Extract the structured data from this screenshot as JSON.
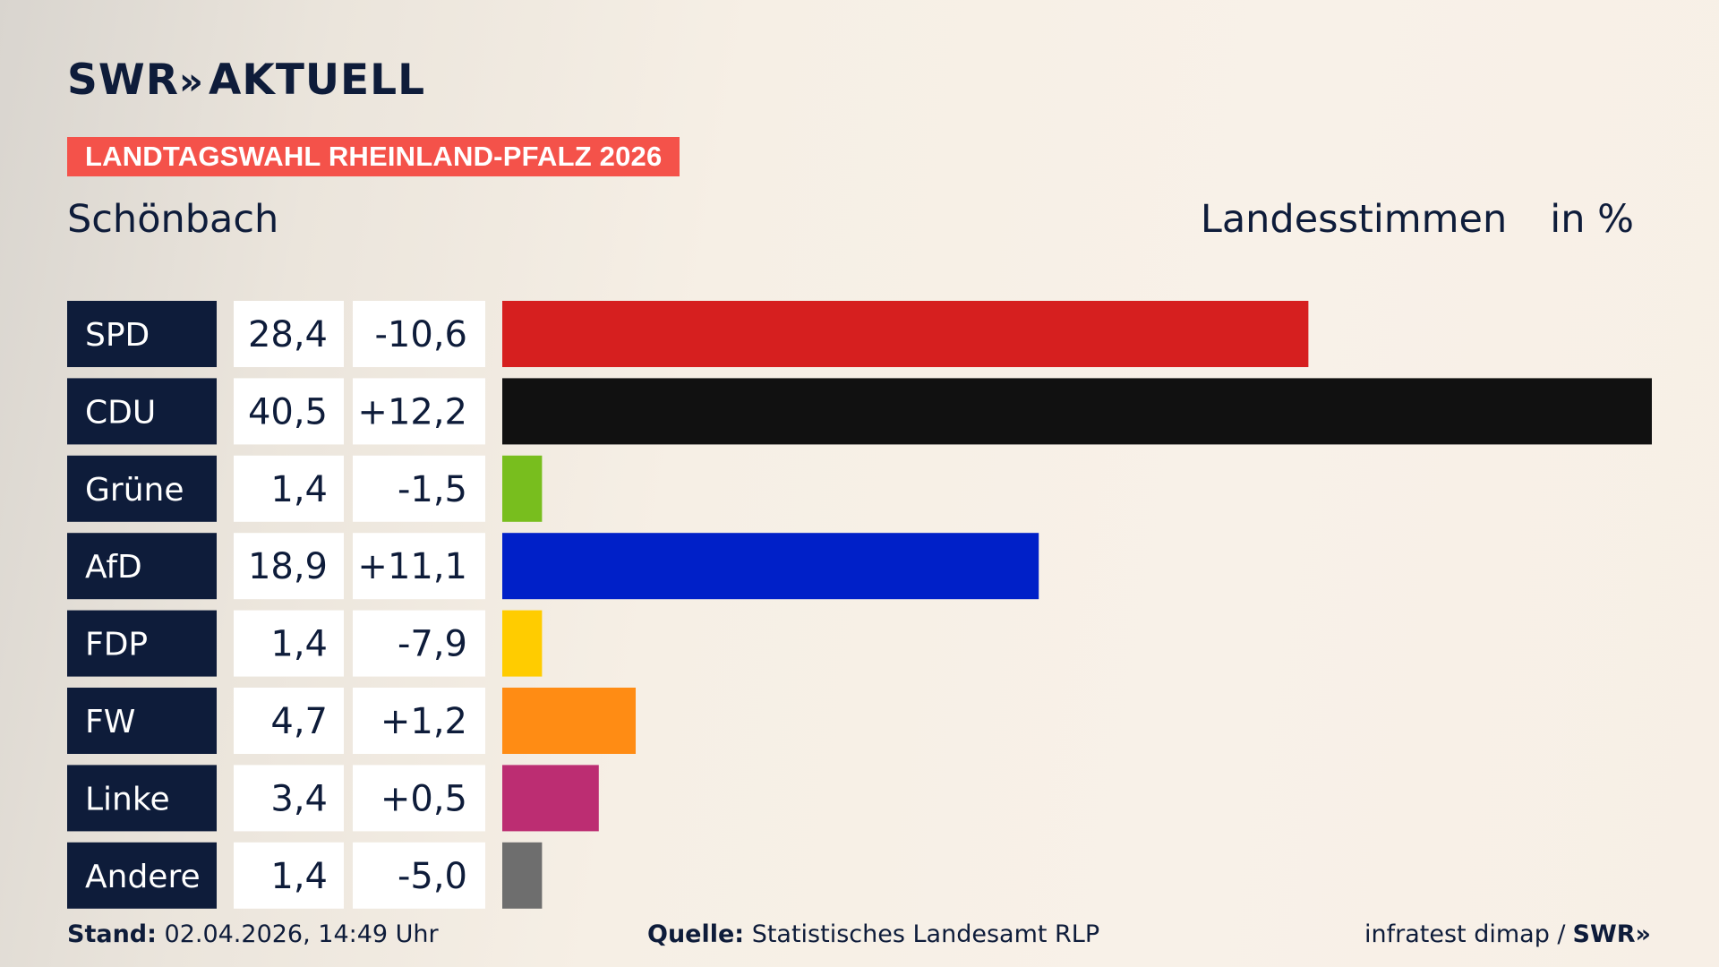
{
  "header": {
    "brand": "SWR",
    "brand_chevrons": "»",
    "brand_suffix": "AKTUELL",
    "banner": "LANDTAGSWAHL RHEINLAND-PFALZ 2026",
    "place": "Schönbach",
    "metric": "Landesstimmen",
    "unit": "in %"
  },
  "colors": {
    "banner": "#f4524a",
    "label_bg": "#0e1c3a",
    "value_bg": "#ffffff"
  },
  "chart_data": {
    "type": "bar",
    "orientation": "horizontal",
    "categories": [
      "SPD",
      "CDU",
      "Grüne",
      "AfD",
      "FDP",
      "FW",
      "Linke",
      "Andere"
    ],
    "values": [
      28.4,
      40.5,
      1.4,
      18.9,
      1.4,
      4.7,
      3.4,
      1.4
    ],
    "value_labels": [
      "28,4",
      "40,5",
      "1,4",
      "18,9",
      "1,4",
      "4,7",
      "3,4",
      "1,4"
    ],
    "changes": [
      -10.6,
      12.2,
      -1.5,
      11.1,
      -7.9,
      1.2,
      0.5,
      -5.0
    ],
    "change_labels": [
      "-10,6",
      "+12,2",
      "-1,5",
      "+11,1",
      "-7,9",
      "+1,2",
      "+0,5",
      "-5,0"
    ],
    "colors": [
      "#d61f1f",
      "#111111",
      "#78be1e",
      "#0020c8",
      "#ffcc00",
      "#ff8c14",
      "#bc2d72",
      "#6e6e6e"
    ],
    "xlim": [
      0,
      40.5
    ],
    "grid": false,
    "legend": "none"
  },
  "footer": {
    "stand_label": "Stand:",
    "stand_value": "02.04.2026, 14:49 Uhr",
    "source_label": "Quelle:",
    "source_value": "Statistisches Landesamt RLP",
    "credit": "infratest dimap /",
    "credit_brand": "SWR»"
  }
}
